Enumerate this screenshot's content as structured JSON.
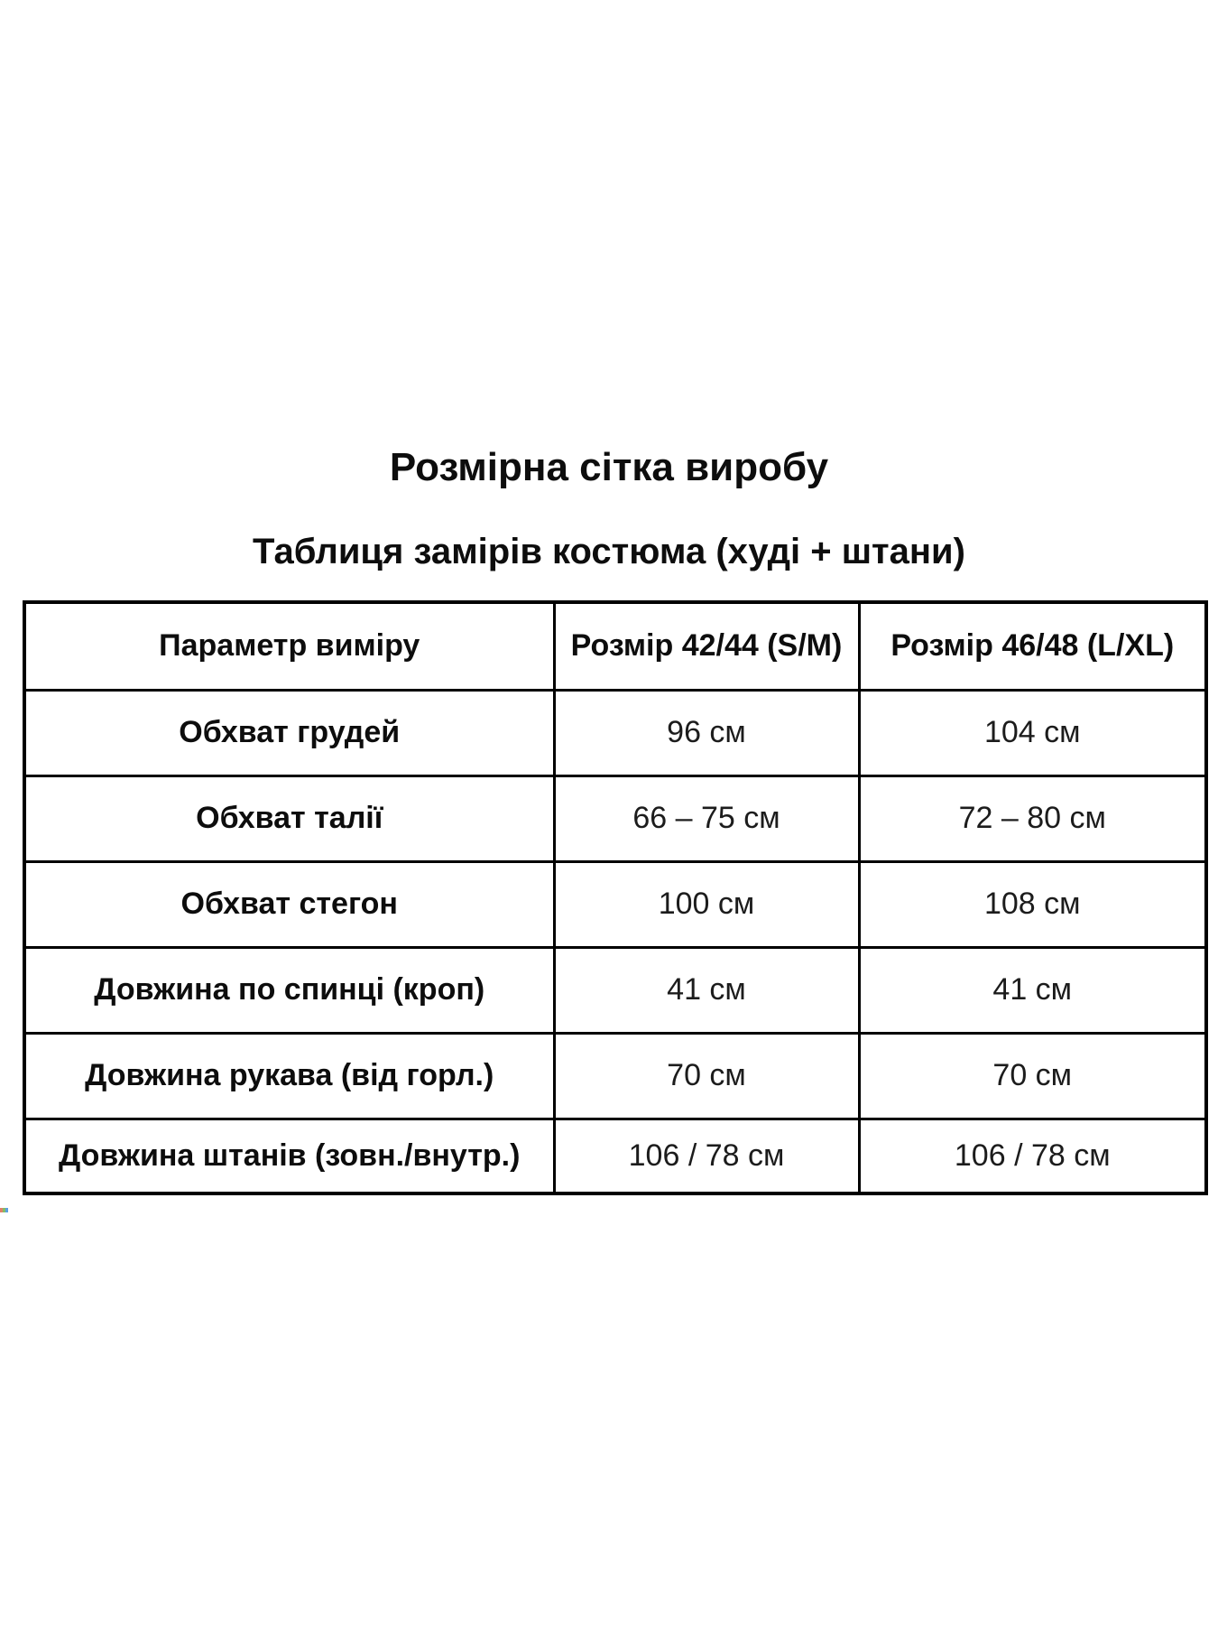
{
  "page": {
    "title": "Розмірна сітка виробу",
    "subtitle": "Таблиця замірів костюма (худі + штани)"
  },
  "table": {
    "columns": [
      "Параметр виміру",
      "Розмір 42/44 (S/M)",
      "Розмір 46/48 (L/XL)"
    ],
    "rows": [
      {
        "parameter": "Обхват грудей",
        "size_sm": "96 см",
        "size_lxl": "104 см"
      },
      {
        "parameter": "Обхват талії",
        "size_sm": "66 – 75 см",
        "size_lxl": "72 – 80 см"
      },
      {
        "parameter": "Обхват стегон",
        "size_sm": "100 см",
        "size_lxl": "108 см"
      },
      {
        "parameter": "Довжина по спинці (кроп)",
        "size_sm": "41 см",
        "size_lxl": "41 см"
      },
      {
        "parameter": "Довжина рукава (від горл.)",
        "size_sm": "70 см",
        "size_lxl": "70 см"
      },
      {
        "parameter": "Довжина штанів (зовн./внутр.)",
        "size_sm": "106 / 78 см",
        "size_lxl": "106 / 78 см"
      }
    ]
  },
  "colors": {
    "background": "#ffffff",
    "text": "#0d0d0d",
    "border": "#000000"
  }
}
